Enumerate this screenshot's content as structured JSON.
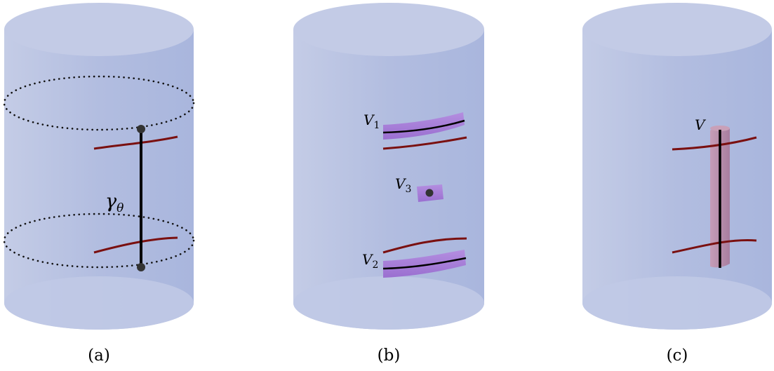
{
  "panels": [
    {
      "id": "a",
      "caption": "(a)",
      "geodesic_label": "γ",
      "geodesic_subscript": "θ"
    },
    {
      "id": "b",
      "caption": "(b)",
      "regions": [
        {
          "label": "V",
          "subscript": "1"
        },
        {
          "label": "V",
          "subscript": "2"
        },
        {
          "label": "V",
          "subscript": "3"
        }
      ]
    },
    {
      "id": "c",
      "caption": "(c)",
      "region_label": "V"
    }
  ],
  "colors": {
    "cylinder_body": "#b0bcdc",
    "cylinder_cap": "#c3cbe6",
    "red_curve": "#7a1010",
    "geodesic": "#000000",
    "point": "#333333",
    "purple_region": "#a57fd6",
    "pink_tube": "#b58aa6"
  }
}
